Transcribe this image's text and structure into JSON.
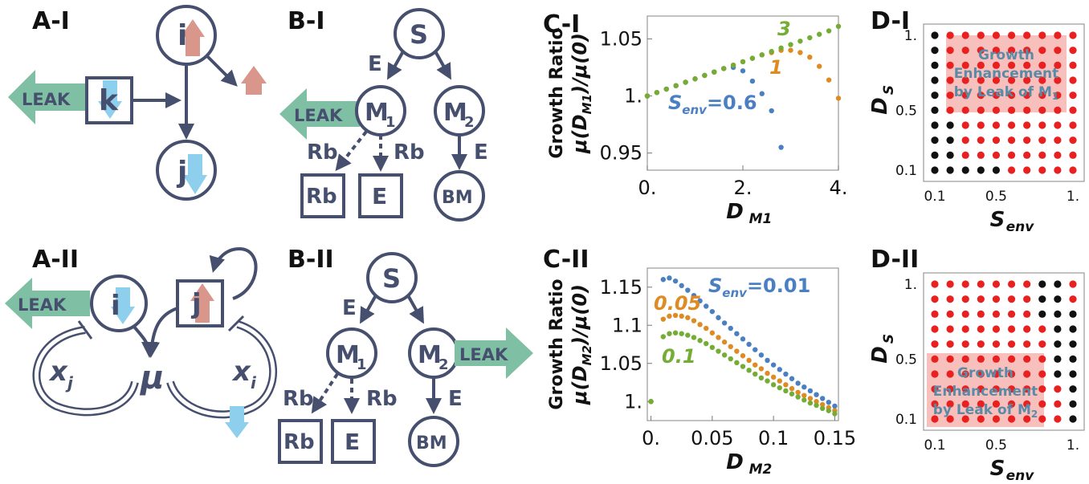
{
  "panel_labels": {
    "AI": "A-I",
    "BI": "B-I",
    "CI": "C-I",
    "DI": "D-I",
    "AII": "A-II",
    "BII": "B-II",
    "CII": "C-II",
    "DII": "D-II"
  },
  "nodes": {
    "i": "i",
    "j": "j",
    "k": "k",
    "S": "S",
    "M": "M",
    "sub1": "1",
    "sub2": "2",
    "BM": "BM",
    "Rb": "Rb",
    "E": "E",
    "mu": "μ",
    "x": "x",
    "xi_sub": "i",
    "xj_sub": "j"
  },
  "leak_label": "LEAK",
  "colors": {
    "node": "#46506e",
    "leak": "#7fbfa4",
    "up": "#d9968a",
    "down": "#8fcfee",
    "blue": "#4a7fc2",
    "orange": "#dd8b22",
    "green": "#74ad36",
    "red_dot": "#e82020",
    "black_dot": "#111111",
    "region": "#f08c87"
  },
  "icons": [
    "up-arrow-icon",
    "down-arrow-icon",
    "leak-arrow-icon",
    "self-loop-arrow",
    "inhibition-arc"
  ],
  "chart_data": [
    {
      "id": "C-I",
      "type": "scatter",
      "xlabel_main": "D",
      "xlabel_sub": "M1",
      "ylabel_top": "Growth Ratio",
      "ylabel_main": "μ(D",
      "ylabel_sub": "M1",
      "ylabel_tail": ")/μ(0)",
      "xlim": [
        0,
        4
      ],
      "ylim": [
        0.935,
        1.07
      ],
      "xticks": [
        {
          "v": 0,
          "t": "0."
        },
        {
          "v": 2,
          "t": "2."
        },
        {
          "v": 4,
          "t": "4."
        }
      ],
      "yticks": [
        {
          "v": 0.95,
          "t": "0.95"
        },
        {
          "v": 1.0,
          "t": "1."
        },
        {
          "v": 1.05,
          "t": "1.05"
        }
      ],
      "series": [
        {
          "name": "Senv=0.6",
          "label": "0.6",
          "color": "#4a7fc2",
          "x": [
            0,
            0.2,
            0.4,
            0.6,
            0.8,
            1.0,
            1.2,
            1.4,
            1.6,
            1.8,
            2.0,
            2.2,
            2.4,
            2.6,
            2.8
          ],
          "y": [
            1.0,
            1.003,
            1.006,
            1.009,
            1.012,
            1.015,
            1.018,
            1.021,
            1.024,
            1.025,
            1.022,
            1.013,
            1.002,
            0.987,
            0.955
          ]
        },
        {
          "name": "1",
          "label": "1",
          "color": "#dd8b22",
          "x": [
            0,
            0.2,
            0.4,
            0.6,
            0.8,
            1.0,
            1.2,
            1.4,
            1.6,
            1.8,
            2.0,
            2.2,
            2.4,
            2.6,
            2.8,
            3.0,
            3.2,
            3.4,
            3.6,
            3.8,
            4.0
          ],
          "y": [
            1.0,
            1.003,
            1.006,
            1.009,
            1.012,
            1.015,
            1.018,
            1.021,
            1.024,
            1.027,
            1.03,
            1.033,
            1.036,
            1.038,
            1.04,
            1.04,
            1.038,
            1.034,
            1.026,
            1.014,
            0.998
          ]
        },
        {
          "name": "3",
          "label": "3",
          "color": "#74ad36",
          "x": [
            0,
            0.2,
            0.4,
            0.6,
            0.8,
            1.0,
            1.2,
            1.4,
            1.6,
            1.8,
            2.0,
            2.2,
            2.4,
            2.6,
            2.8,
            3.0,
            3.2,
            3.4,
            3.6,
            3.8,
            4.0
          ],
          "y": [
            1.0,
            1.003,
            1.006,
            1.009,
            1.012,
            1.015,
            1.018,
            1.021,
            1.024,
            1.027,
            1.03,
            1.033,
            1.036,
            1.039,
            1.042,
            1.045,
            1.048,
            1.051,
            1.054,
            1.057,
            1.061
          ]
        }
      ],
      "annotation_prefix": "S",
      "annotation_sub": "env",
      "annotation_eq": "="
    },
    {
      "id": "C-II",
      "type": "scatter",
      "xlabel_main": "D",
      "xlabel_sub": "M2",
      "ylabel_top": "Growth Ratio",
      "ylabel_main": "μ(D",
      "ylabel_sub": "M2",
      "ylabel_tail": ")/μ(0)",
      "xlim": [
        -0.003,
        0.153
      ],
      "ylim": [
        0.975,
        1.175
      ],
      "xticks": [
        {
          "v": 0,
          "t": "0."
        },
        {
          "v": 0.05,
          "t": "0.05"
        },
        {
          "v": 0.1,
          "t": "0.1"
        },
        {
          "v": 0.15,
          "t": "0.15"
        }
      ],
      "xticks_extra": [
        {
          "v": 0.025,
          "t": "0."
        }
      ],
      "yticks": [
        {
          "v": 1.0,
          "t": "1."
        },
        {
          "v": 1.05,
          "t": "1.05"
        },
        {
          "v": 1.1,
          "t": "1.1"
        },
        {
          "v": 1.15,
          "t": "1.15"
        }
      ],
      "series": [
        {
          "name": "Senv=0.01",
          "label": "0.01",
          "color": "#4a7fc2",
          "x": [
            0,
            0.01,
            0.015,
            0.02,
            0.025,
            0.03,
            0.035,
            0.04,
            0.045,
            0.05,
            0.055,
            0.06,
            0.065,
            0.07,
            0.075,
            0.08,
            0.085,
            0.09,
            0.095,
            0.1,
            0.105,
            0.11,
            0.115,
            0.12,
            0.125,
            0.13,
            0.135,
            0.14,
            0.145,
            0.15
          ],
          "y": [
            1.0,
            1.16,
            1.162,
            1.158,
            1.152,
            1.146,
            1.139,
            1.132,
            1.125,
            1.118,
            1.11,
            1.103,
            1.096,
            1.089,
            1.082,
            1.075,
            1.068,
            1.061,
            1.054,
            1.048,
            1.042,
            1.036,
            1.03,
            1.024,
            1.019,
            1.014,
            1.009,
            1.004,
            0.999,
            0.994
          ]
        },
        {
          "name": "0.05",
          "label": "0.05",
          "color": "#dd8b22",
          "x": [
            0,
            0.01,
            0.015,
            0.02,
            0.025,
            0.03,
            0.035,
            0.04,
            0.045,
            0.05,
            0.055,
            0.06,
            0.065,
            0.07,
            0.075,
            0.08,
            0.085,
            0.09,
            0.095,
            0.1,
            0.105,
            0.11,
            0.115,
            0.12,
            0.125,
            0.13,
            0.135,
            0.14,
            0.145,
            0.15
          ],
          "y": [
            1.0,
            1.108,
            1.112,
            1.113,
            1.112,
            1.11,
            1.106,
            1.101,
            1.096,
            1.09,
            1.084,
            1.078,
            1.072,
            1.066,
            1.06,
            1.054,
            1.048,
            1.043,
            1.037,
            1.032,
            1.027,
            1.022,
            1.017,
            1.012,
            1.008,
            1.004,
            1.0,
            0.996,
            0.992,
            0.988
          ]
        },
        {
          "name": "0.1",
          "label": "0.1",
          "color": "#74ad36",
          "x": [
            0,
            0.01,
            0.015,
            0.02,
            0.025,
            0.03,
            0.035,
            0.04,
            0.045,
            0.05,
            0.055,
            0.06,
            0.065,
            0.07,
            0.075,
            0.08,
            0.085,
            0.09,
            0.095,
            0.1,
            0.105,
            0.11,
            0.115,
            0.12,
            0.125,
            0.13,
            0.135,
            0.14,
            0.145,
            0.15
          ],
          "y": [
            1.0,
            1.085,
            1.089,
            1.09,
            1.089,
            1.087,
            1.084,
            1.08,
            1.076,
            1.071,
            1.066,
            1.061,
            1.056,
            1.051,
            1.046,
            1.041,
            1.036,
            1.031,
            1.027,
            1.022,
            1.018,
            1.014,
            1.01,
            1.006,
            1.002,
            0.998,
            0.995,
            0.991,
            0.988,
            0.984
          ]
        }
      ],
      "annotation_prefix": "S",
      "annotation_sub": "env",
      "annotation_eq": "="
    },
    {
      "id": "D-I",
      "type": "heatmap",
      "xlabel_main": "S",
      "xlabel_sub": "env",
      "ylabel_main": "D",
      "ylabel_sub": "S",
      "xticks": [
        {
          "v": 0.1,
          "t": "0.1"
        },
        {
          "v": 0.5,
          "t": "0.5"
        },
        {
          "v": 1.0,
          "t": "1."
        }
      ],
      "yticks": [
        {
          "v": 0.1,
          "t": "0.1"
        },
        {
          "v": 0.5,
          "t": "0.5"
        },
        {
          "v": 1.0,
          "t": "1."
        }
      ],
      "grid_x": [
        0.1,
        0.2,
        0.3,
        0.4,
        0.5,
        0.6,
        0.7,
        0.8,
        0.9,
        1.0
      ],
      "grid_y": [
        0.1,
        0.2,
        0.3,
        0.4,
        0.5,
        0.6,
        0.7,
        0.8,
        0.9,
        1.0
      ],
      "rows_top_to_bottom": [
        "1000000000",
        "1000000000",
        "1000000000",
        "1000000000",
        "1000000000",
        "1000000000",
        "1100000000",
        "1100000000",
        "1100000000",
        "1111100000"
      ],
      "legend_meaning": {
        "1": "black",
        "0": "red"
      },
      "region_text": [
        "Growth",
        "Enhancement",
        "by Leak of M"
      ],
      "region_sub": "1"
    },
    {
      "id": "D-II",
      "type": "heatmap",
      "xlabel_main": "S",
      "xlabel_sub": "env",
      "ylabel_main": "D",
      "ylabel_sub": "S",
      "xticks": [
        {
          "v": 0.1,
          "t": "0.1"
        },
        {
          "v": 0.5,
          "t": "0.5"
        },
        {
          "v": 1.0,
          "t": "1."
        }
      ],
      "yticks": [
        {
          "v": 0.1,
          "t": "0.1"
        },
        {
          "v": 0.5,
          "t": "0.5"
        },
        {
          "v": 1.0,
          "t": "1."
        }
      ],
      "grid_x": [
        0.1,
        0.2,
        0.3,
        0.4,
        0.5,
        0.6,
        0.7,
        0.8,
        0.9,
        1.0
      ],
      "grid_y": [
        0.1,
        0.2,
        0.3,
        0.4,
        0.5,
        0.6,
        0.7,
        0.8,
        0.9,
        1.0
      ],
      "rows_top_to_bottom": [
        "0000000110",
        "0000000110",
        "0000000111",
        "0000000011",
        "0000000011",
        "0000000011",
        "0000000011",
        "0000000001",
        "0000000001",
        "0000000001"
      ],
      "legend_meaning": {
        "1": "black",
        "0": "red"
      },
      "region_text": [
        "Growth",
        "Enhancement",
        "by Leak of M"
      ],
      "region_sub": "2"
    }
  ]
}
